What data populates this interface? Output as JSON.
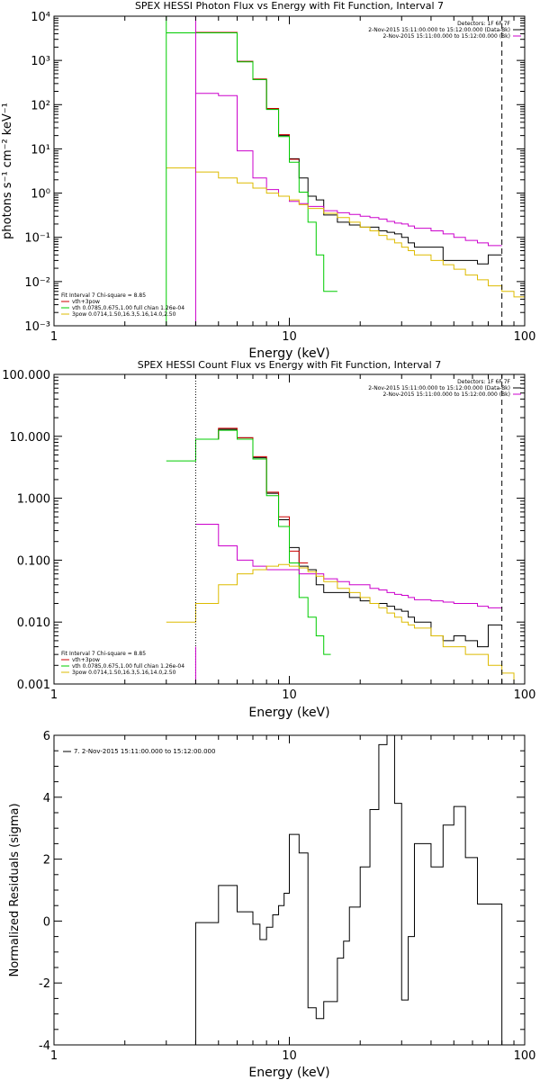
{
  "chart_data": [
    {
      "type": "line",
      "title": "SPEX HESSI Photon Flux vs Energy with Fit Function, Interval 7",
      "xlabel": "Energy (keV)",
      "ylabel": "photons s⁻¹ cm⁻² keV⁻¹",
      "xscale": "log",
      "yscale": "log",
      "xlim": [
        1,
        100
      ],
      "ylim": [
        0.001,
        10000
      ],
      "x_ticks": [
        "1",
        "10",
        "100"
      ],
      "y_ticks": [
        "10⁻³",
        "10⁻²",
        "10⁻¹",
        "10⁰",
        "10¹",
        "10²",
        "10³",
        "10⁴"
      ],
      "y_tick_values": [
        0.001,
        0.01,
        0.1,
        1,
        10,
        100,
        1000,
        10000
      ],
      "vlines": [
        {
          "x": 3.0,
          "color": "#00cc00",
          "style": "solid"
        },
        {
          "x": 4.0,
          "color": "#cc00cc",
          "style": "solid"
        },
        {
          "x": 80,
          "color": "#000000",
          "style": "dashed"
        }
      ],
      "header_right": [
        {
          "text": "Detectors: 1F 6F 7F",
          "color": ""
        },
        {
          "text": "2-Nov-2015 15:11:00.000 to 15:12:00.000 (Data-Bk)",
          "color": "#000000"
        },
        {
          "text": "2-Nov-2015 15:11:00.000 to 15:12:00.000 (Bk)",
          "color": "#cc00cc"
        }
      ],
      "legend_lines": [
        {
          "text": "Fit Interval 7   Chi-square = 8.85",
          "color": ""
        },
        {
          "text": "vth+3pow",
          "color": "#cc0000"
        },
        {
          "text": "vth 0.0785,0.675,1.00   full chian 1.26e-04",
          "color": "#00cc00"
        },
        {
          "text": "3pow 0.0714,1.50,16.3,5.16,14.0,2.50",
          "color": "#ddbb00"
        }
      ],
      "series": [
        {
          "color": "#000000",
          "edges": [
            4.0,
            5.0,
            6.0,
            7.0,
            8.0,
            9.0,
            10.0,
            11.0,
            12.0,
            13.0,
            14.0,
            16.0,
            18.0,
            20.0,
            22.0,
            24.0,
            26.0,
            28.0,
            30.0,
            32.0,
            34.0,
            40.0,
            45.0,
            50.0,
            56.0,
            63.0,
            70.0,
            80.0
          ],
          "values": [
            4200,
            4300,
            950,
            370,
            80,
            20,
            6,
            2.2,
            0.85,
            0.7,
            0.32,
            0.22,
            0.19,
            0.17,
            0.17,
            0.14,
            0.13,
            0.12,
            0.1,
            0.075,
            0.06,
            0.06,
            0.03,
            0.03,
            0.03,
            0.025,
            0.04
          ]
        },
        {
          "color": "#cc0000",
          "edges": [
            4.0,
            5.0,
            6.0,
            7.0,
            8.0,
            9.0,
            10.0,
            11.0
          ],
          "values": [
            4300,
            4300,
            950,
            380,
            82,
            21,
            5.8
          ]
        },
        {
          "color": "#00cc00",
          "edges": [
            3.0,
            4.0,
            5.0,
            6.0,
            7.0,
            8.0,
            9.0,
            10.0,
            11.0,
            12.0,
            13.0,
            14.0,
            16.0
          ],
          "values": [
            4200,
            4200,
            4200,
            930,
            370,
            78,
            19,
            5,
            1.05,
            0.22,
            0.04,
            0.006
          ]
        },
        {
          "color": "#cc00cc",
          "edges": [
            4.0,
            5.0,
            6.0,
            7.0,
            8.0,
            9.0,
            10.0,
            11.0,
            12.0,
            14.0,
            16.0,
            18.0,
            20.0,
            22.0,
            24.0,
            26.0,
            28.0,
            30.0,
            32.0,
            34.0,
            40.0,
            45.0,
            50.0,
            56.0,
            63.0,
            70.0,
            80.0
          ],
          "values": [
            180,
            160,
            9,
            2.2,
            1.2,
            0.85,
            0.65,
            0.58,
            0.5,
            0.4,
            0.36,
            0.33,
            0.3,
            0.28,
            0.26,
            0.23,
            0.21,
            0.2,
            0.18,
            0.16,
            0.14,
            0.12,
            0.1,
            0.085,
            0.075,
            0.065
          ]
        },
        {
          "color": "#ddbb00",
          "edges": [
            3.0,
            4.0,
            5.0,
            6.0,
            7.0,
            8.0,
            9.0,
            10.0,
            11.0,
            12.0,
            14.0,
            16.0,
            18.0,
            20.0,
            22.0,
            24.0,
            26.0,
            28.0,
            30.0,
            32.0,
            34.0,
            40.0,
            45.0,
            50.0,
            56.0,
            63.0,
            70.0,
            80.0,
            90.0,
            100.0
          ],
          "values": [
            3.7,
            3.0,
            2.2,
            1.7,
            1.3,
            1.0,
            0.85,
            0.7,
            0.55,
            0.45,
            0.35,
            0.28,
            0.22,
            0.17,
            0.14,
            0.11,
            0.09,
            0.075,
            0.06,
            0.05,
            0.04,
            0.03,
            0.024,
            0.019,
            0.014,
            0.011,
            0.008,
            0.006,
            0.0045
          ]
        }
      ]
    },
    {
      "type": "line",
      "title": "SPEX HESSI Count Flux vs Energy with Fit Function, Interval 7",
      "xlabel": "Energy (keV)",
      "ylabel": "",
      "xscale": "log",
      "yscale": "log",
      "xlim": [
        1,
        100
      ],
      "ylim": [
        0.001,
        100
      ],
      "x_ticks": [
        "1",
        "10",
        "100"
      ],
      "y_ticks": [
        "0.001",
        "0.010",
        "0.100",
        "1.000",
        "10.000",
        "100.000"
      ],
      "y_tick_values": [
        0.001,
        0.01,
        0.1,
        1,
        10,
        100
      ],
      "vlines": [
        {
          "x": 4.0,
          "color": "#000000",
          "style": "dotted"
        },
        {
          "x": 4.0,
          "color": "#cc00cc",
          "style": "solid",
          "ymax": 0.004
        },
        {
          "x": 80,
          "color": "#000000",
          "style": "dashed"
        }
      ],
      "header_right": [
        {
          "text": "Detectors: 1F 6F 7F",
          "color": ""
        },
        {
          "text": "2-Nov-2015 15:11:00.000 to 15:12:00.000 (Data-Bk)",
          "color": "#000000"
        },
        {
          "text": "2-Nov-2015 15:11:00.000 to 15:12:00.000 (Bk)",
          "color": "#cc00cc"
        }
      ],
      "legend_lines": [
        {
          "text": "Fit Interval 7   Chi-square = 8.85",
          "color": ""
        },
        {
          "text": "vth+3pow",
          "color": "#cc0000"
        },
        {
          "text": "vth 0.0785,0.675,1.00   full chian 1.26e-04",
          "color": "#00cc00"
        },
        {
          "text": "3pow 0.0714,1.50,16.3,5.16,14.0,2.50",
          "color": "#ddbb00"
        }
      ],
      "series": [
        {
          "color": "#000000",
          "edges": [
            4.0,
            5.0,
            6.0,
            7.0,
            8.0,
            9.0,
            10.0,
            11.0,
            12.0,
            13.0,
            14.0,
            16.0,
            18.0,
            20.0,
            22.0,
            24.0,
            26.0,
            28.0,
            30.0,
            32.0,
            34.0,
            40.0,
            45.0,
            50.0,
            56.0,
            63.0,
            70.0,
            80.0
          ],
          "values": [
            9.0,
            13.0,
            9.5,
            4.5,
            1.2,
            0.45,
            0.16,
            0.08,
            0.07,
            0.04,
            0.03,
            0.03,
            0.025,
            0.022,
            0.02,
            0.02,
            0.018,
            0.016,
            0.015,
            0.012,
            0.01,
            0.006,
            0.005,
            0.006,
            0.005,
            0.004,
            0.009
          ]
        },
        {
          "color": "#cc0000",
          "edges": [
            4.0,
            5.0,
            6.0,
            7.0,
            8.0,
            9.0,
            10.0,
            11.0,
            12.0
          ],
          "values": [
            9.0,
            13.5,
            9.5,
            4.7,
            1.25,
            0.5,
            0.14,
            0.09
          ]
        },
        {
          "color": "#00cc00",
          "edges": [
            3.0,
            4.0,
            5.0,
            6.0,
            7.0,
            8.0,
            9.0,
            10.0,
            11.0,
            12.0,
            13.0,
            14.0,
            15.0
          ],
          "values": [
            4.0,
            9.0,
            12.5,
            9.0,
            4.3,
            1.1,
            0.35,
            0.09,
            0.025,
            0.012,
            0.006,
            0.003
          ]
        },
        {
          "color": "#cc00cc",
          "edges": [
            4.0,
            5.0,
            6.0,
            7.0,
            8.0,
            9.0,
            10.0,
            11.0,
            12.0,
            14.0,
            16.0,
            18.0,
            20.0,
            22.0,
            24.0,
            26.0,
            28.0,
            30.0,
            32.0,
            34.0,
            40.0,
            45.0,
            50.0,
            56.0,
            63.0,
            70.0,
            80.0
          ],
          "values": [
            0.38,
            0.17,
            0.1,
            0.08,
            0.07,
            0.07,
            0.07,
            0.06,
            0.06,
            0.05,
            0.045,
            0.04,
            0.04,
            0.035,
            0.033,
            0.03,
            0.028,
            0.027,
            0.025,
            0.023,
            0.022,
            0.021,
            0.02,
            0.02,
            0.018,
            0.017
          ]
        },
        {
          "color": "#ddbb00",
          "edges": [
            3.0,
            4.0,
            5.0,
            6.0,
            7.0,
            8.0,
            9.0,
            10.0,
            11.0,
            12.0,
            13.0,
            14.0,
            16.0,
            18.0,
            20.0,
            22.0,
            24.0,
            26.0,
            28.0,
            30.0,
            32.0,
            34.0,
            40.0,
            45.0,
            50.0,
            56.0,
            63.0,
            70.0,
            80.0,
            90.0,
            100.0
          ],
          "values": [
            0.01,
            0.02,
            0.04,
            0.06,
            0.07,
            0.08,
            0.085,
            0.08,
            0.075,
            0.065,
            0.055,
            0.045,
            0.035,
            0.03,
            0.025,
            0.02,
            0.017,
            0.014,
            0.012,
            0.01,
            0.009,
            0.008,
            0.006,
            0.004,
            0.004,
            0.003,
            0.003,
            0.002,
            0.0015,
            0.001
          ]
        }
      ]
    },
    {
      "type": "line",
      "title": "",
      "xlabel": "Energy (keV)",
      "ylabel": "Normalized Residuals (sigma)",
      "xscale": "log",
      "yscale": "linear",
      "xlim": [
        1,
        100
      ],
      "ylim": [
        -4,
        6
      ],
      "x_ticks": [
        "1",
        "10",
        "100"
      ],
      "y_ticks": [
        "-4",
        "-2",
        "0",
        "2",
        "4",
        "6"
      ],
      "y_tick_values": [
        -4,
        -2,
        0,
        2,
        4,
        6
      ],
      "legend_lines": [
        {
          "text": "7. 2-Nov-2015 15:11:00.000 to 15:12:00.000",
          "color": "#000000"
        }
      ],
      "series": [
        {
          "color": "#000000",
          "edges": [
            4.0,
            5.0,
            6.0,
            7.0,
            7.5,
            8.0,
            8.5,
            9.0,
            9.5,
            10.0,
            11.0,
            12.0,
            13.0,
            14.0,
            16.0,
            17.0,
            18.0,
            20.0,
            22.0,
            24.0,
            26.0,
            28.0,
            30.0,
            32.0,
            34.0,
            40.0,
            45.0,
            50.0,
            56.0,
            63.0,
            70.0,
            80.0
          ],
          "values": [
            -0.05,
            1.15,
            0.3,
            -0.1,
            -0.6,
            -0.2,
            0.2,
            0.5,
            0.9,
            2.8,
            2.2,
            -2.8,
            -3.15,
            -2.6,
            -1.2,
            -0.65,
            0.45,
            1.75,
            3.6,
            5.7,
            6.0,
            3.8,
            -2.55,
            -0.5,
            2.5,
            1.75,
            3.1,
            3.7,
            2.05,
            0.55,
            0.55
          ],
          "start_y": -4,
          "end_y": -4
        }
      ]
    }
  ]
}
